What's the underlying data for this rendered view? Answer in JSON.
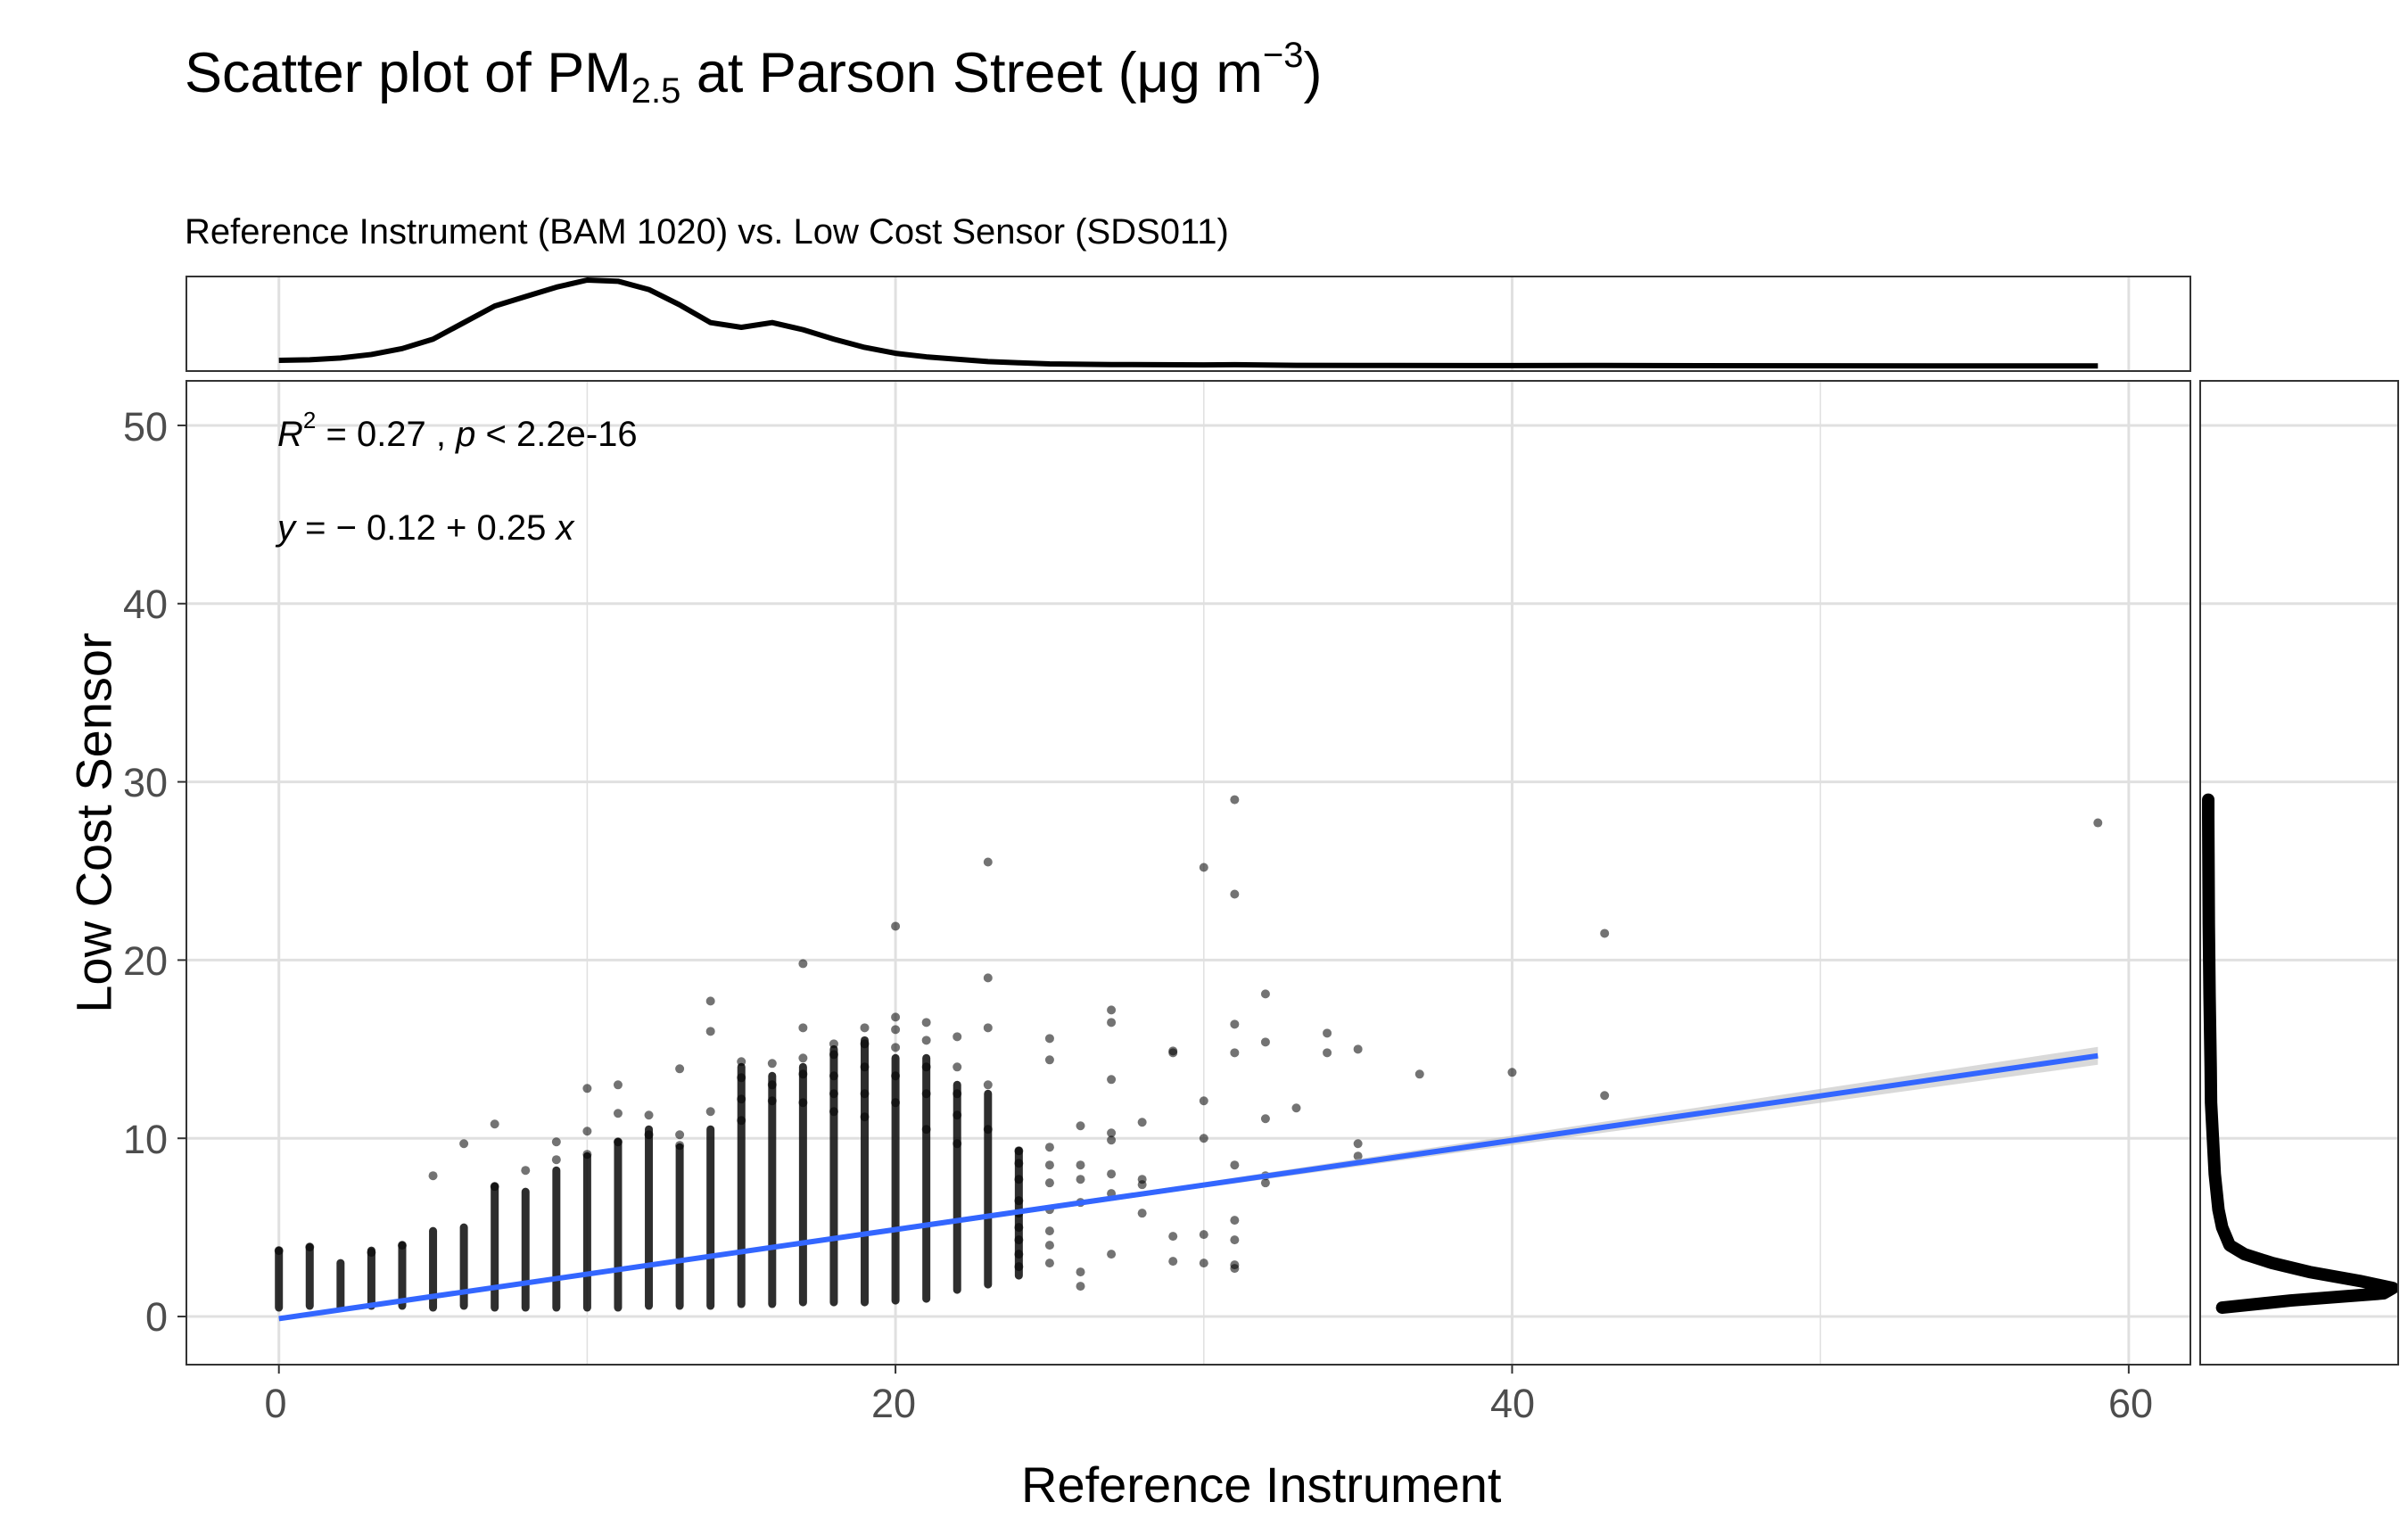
{
  "chart_data": {
    "type": "scatter",
    "title_prefix": "Scatter plot of PM",
    "title_sub": "2.5",
    "title_mid": " at Parson Street (μg m",
    "title_sup": "−3",
    "title_end": ")",
    "subtitle": "Reference Instrument (BAM 1020) vs. Low Cost Sensor (SDS011)",
    "xlabel": "Reference Instrument",
    "ylabel": "Low Cost Sensor",
    "xlim": [
      -3.0,
      62.0
    ],
    "ylim": [
      -2.7,
      52.5
    ],
    "x_ticks": [
      "0",
      "20",
      "40",
      "60"
    ],
    "y_ticks": [
      "0",
      "10",
      "20",
      "30",
      "40",
      "50"
    ],
    "grid": true,
    "annotation_r2": {
      "r": "R",
      "sup": "2",
      "mid": " = 0.27 , ",
      "p": "p",
      "end": " < 2.2e-16"
    },
    "annotation_eq": {
      "y": "y",
      "mid": " = − 0.12 + 0.25 ",
      "x": "x"
    },
    "regression": {
      "intercept": -0.12,
      "slope": 0.25,
      "x_range": [
        0,
        59
      ],
      "color": "#3366FF"
    },
    "columns": [
      {
        "x": 0,
        "ymin": 0.5,
        "ymax": 3.7
      },
      {
        "x": 1,
        "ymin": 0.6,
        "ymax": 3.9
      },
      {
        "x": 2,
        "ymin": 0.5,
        "ymax": 3.0
      },
      {
        "x": 3,
        "ymin": 0.6,
        "ymax": 3.7
      },
      {
        "x": 4,
        "ymin": 0.6,
        "ymax": 4.0
      },
      {
        "x": 5,
        "ymin": 0.5,
        "ymax": 4.8
      },
      {
        "x": 6,
        "ymin": 0.6,
        "ymax": 5.0
      },
      {
        "x": 7,
        "ymin": 0.5,
        "ymax": 7.3
      },
      {
        "x": 8,
        "ymin": 0.5,
        "ymax": 7.0
      },
      {
        "x": 9,
        "ymin": 0.5,
        "ymax": 8.2
      },
      {
        "x": 10,
        "ymin": 0.5,
        "ymax": 9.0
      },
      {
        "x": 11,
        "ymin": 0.5,
        "ymax": 9.8
      },
      {
        "x": 12,
        "ymin": 0.6,
        "ymax": 10.5
      },
      {
        "x": 13,
        "ymin": 0.6,
        "ymax": 9.5
      },
      {
        "x": 14,
        "ymin": 0.6,
        "ymax": 10.5
      },
      {
        "x": 15,
        "ymin": 0.7,
        "ymax": 14.0
      },
      {
        "x": 16,
        "ymin": 0.7,
        "ymax": 13.5
      },
      {
        "x": 17,
        "ymin": 0.8,
        "ymax": 14.0
      },
      {
        "x": 18,
        "ymin": 0.8,
        "ymax": 15.0
      },
      {
        "x": 19,
        "ymin": 0.8,
        "ymax": 15.5
      },
      {
        "x": 20,
        "ymin": 0.9,
        "ymax": 14.5
      },
      {
        "x": 21,
        "ymin": 1.0,
        "ymax": 14.5
      },
      {
        "x": 22,
        "ymin": 1.5,
        "ymax": 13.0
      },
      {
        "x": 23,
        "ymin": 1.8,
        "ymax": 12.5
      },
      {
        "x": 24,
        "ymin": 2.3,
        "ymax": 9.3
      }
    ],
    "points": [
      [
        0,
        3.7
      ],
      [
        1,
        3.9
      ],
      [
        3,
        3.6
      ],
      [
        4,
        4.0
      ],
      [
        5,
        7.9
      ],
      [
        6,
        9.7
      ],
      [
        7,
        10.8
      ],
      [
        7,
        7.3
      ],
      [
        8,
        8.2
      ],
      [
        9,
        9.8
      ],
      [
        9,
        8.8
      ],
      [
        10,
        12.8
      ],
      [
        10,
        10.4
      ],
      [
        10,
        9.1
      ],
      [
        11,
        13.0
      ],
      [
        11,
        11.4
      ],
      [
        11,
        9.8
      ],
      [
        12,
        11.3
      ],
      [
        12,
        10.2
      ],
      [
        13,
        13.9
      ],
      [
        13,
        10.2
      ],
      [
        13,
        9.6
      ],
      [
        14,
        17.7
      ],
      [
        14,
        16.0
      ],
      [
        14,
        11.5
      ],
      [
        15,
        14.3
      ],
      [
        15,
        13.4
      ],
      [
        15,
        12.2
      ],
      [
        15,
        11.0
      ],
      [
        16,
        14.2
      ],
      [
        16,
        13.0
      ],
      [
        16,
        12.1
      ],
      [
        17,
        19.8
      ],
      [
        17,
        16.2
      ],
      [
        17,
        14.5
      ],
      [
        17,
        13.6
      ],
      [
        17,
        12.0
      ],
      [
        18,
        15.3
      ],
      [
        18,
        14.7
      ],
      [
        18,
        13.5
      ],
      [
        18,
        12.5
      ],
      [
        18,
        11.5
      ],
      [
        19,
        16.2
      ],
      [
        19,
        15.3
      ],
      [
        19,
        14.0
      ],
      [
        19,
        12.5
      ],
      [
        19,
        11.2
      ],
      [
        20,
        21.9
      ],
      [
        20,
        16.8
      ],
      [
        20,
        16.1
      ],
      [
        20,
        15.1
      ],
      [
        20,
        13.5
      ],
      [
        20,
        12.0
      ],
      [
        21,
        16.5
      ],
      [
        21,
        15.5
      ],
      [
        21,
        14.0
      ],
      [
        21,
        12.5
      ],
      [
        21,
        10.5
      ],
      [
        22,
        15.7
      ],
      [
        22,
        14.0
      ],
      [
        22,
        12.5
      ],
      [
        22,
        11.3
      ],
      [
        22,
        9.7
      ],
      [
        23,
        25.5
      ],
      [
        23,
        19.0
      ],
      [
        23,
        16.2
      ],
      [
        23,
        13.0
      ],
      [
        23,
        10.5
      ],
      [
        24,
        9.3
      ],
      [
        24,
        8.6
      ],
      [
        24,
        7.7
      ],
      [
        24,
        6.5
      ],
      [
        24,
        5.8
      ],
      [
        24,
        5.0
      ],
      [
        24,
        4.3
      ],
      [
        24,
        3.5
      ],
      [
        24,
        2.8
      ],
      [
        25,
        15.6
      ],
      [
        25,
        14.4
      ],
      [
        25,
        9.5
      ],
      [
        25,
        8.5
      ],
      [
        25,
        7.5
      ],
      [
        25,
        6.0
      ],
      [
        25,
        4.8
      ],
      [
        25,
        4.0
      ],
      [
        25,
        3.0
      ],
      [
        26,
        10.7
      ],
      [
        26,
        8.5
      ],
      [
        26,
        7.7
      ],
      [
        26,
        6.4
      ],
      [
        26,
        2.5
      ],
      [
        26,
        1.7
      ],
      [
        27,
        17.2
      ],
      [
        27,
        16.5
      ],
      [
        27,
        13.3
      ],
      [
        27,
        10.3
      ],
      [
        27,
        9.9
      ],
      [
        27,
        8.0
      ],
      [
        27,
        6.9
      ],
      [
        27,
        3.5
      ],
      [
        28,
        10.9
      ],
      [
        28,
        7.7
      ],
      [
        28,
        7.4
      ],
      [
        28,
        5.8
      ],
      [
        29,
        14.8
      ],
      [
        29,
        14.9
      ],
      [
        29,
        4.5
      ],
      [
        29,
        3.1
      ],
      [
        30,
        25.2
      ],
      [
        30,
        12.1
      ],
      [
        30,
        10.0
      ],
      [
        30,
        4.6
      ],
      [
        30,
        3.0
      ],
      [
        31,
        29.0
      ],
      [
        31,
        23.7
      ],
      [
        31,
        16.4
      ],
      [
        31,
        14.8
      ],
      [
        31,
        8.5
      ],
      [
        31,
        5.4
      ],
      [
        31,
        4.3
      ],
      [
        31,
        2.9
      ],
      [
        31,
        2.7
      ],
      [
        32,
        18.1
      ],
      [
        32,
        15.4
      ],
      [
        32,
        11.1
      ],
      [
        32,
        7.9
      ],
      [
        32,
        7.5
      ],
      [
        33,
        11.7
      ],
      [
        34,
        15.9
      ],
      [
        34,
        14.8
      ],
      [
        35,
        15.0
      ],
      [
        35,
        9.7
      ],
      [
        35,
        9.0
      ],
      [
        37,
        13.6
      ],
      [
        40,
        13.7
      ],
      [
        43,
        21.5
      ],
      [
        43,
        12.4
      ],
      [
        59,
        27.7
      ]
    ],
    "marginal_x_density": [
      [
        0,
        0.06
      ],
      [
        1,
        0.065
      ],
      [
        2,
        0.08
      ],
      [
        3,
        0.11
      ],
      [
        4,
        0.16
      ],
      [
        5,
        0.24
      ],
      [
        6,
        0.38
      ],
      [
        7,
        0.52
      ],
      [
        8,
        0.6
      ],
      [
        9,
        0.68
      ],
      [
        10,
        0.74
      ],
      [
        11,
        0.73
      ],
      [
        12,
        0.66
      ],
      [
        13,
        0.53
      ],
      [
        14,
        0.38
      ],
      [
        15,
        0.34
      ],
      [
        16,
        0.38
      ],
      [
        17,
        0.32
      ],
      [
        18,
        0.24
      ],
      [
        19,
        0.17
      ],
      [
        20,
        0.12
      ],
      [
        21,
        0.09
      ],
      [
        22,
        0.07
      ],
      [
        23,
        0.05
      ],
      [
        24,
        0.04
      ],
      [
        25,
        0.03
      ],
      [
        27,
        0.025
      ],
      [
        30,
        0.022
      ],
      [
        31,
        0.024
      ],
      [
        33,
        0.018
      ],
      [
        36,
        0.017
      ],
      [
        40,
        0.016
      ],
      [
        43,
        0.017
      ],
      [
        46,
        0.015
      ],
      [
        50,
        0.014
      ],
      [
        55,
        0.013
      ],
      [
        59,
        0.013
      ]
    ],
    "marginal_y_density": [
      [
        0.5,
        0.08
      ],
      [
        0.9,
        0.45
      ],
      [
        1.3,
        0.95
      ],
      [
        1.6,
        1.0
      ],
      [
        2.0,
        0.82
      ],
      [
        2.5,
        0.55
      ],
      [
        3.0,
        0.35
      ],
      [
        3.5,
        0.2
      ],
      [
        4.0,
        0.12
      ],
      [
        5.0,
        0.08
      ],
      [
        6.0,
        0.06
      ],
      [
        7.0,
        0.05
      ],
      [
        8.0,
        0.04
      ],
      [
        9.0,
        0.035
      ],
      [
        10.0,
        0.03
      ],
      [
        12.0,
        0.02
      ],
      [
        14.0,
        0.018
      ],
      [
        16.0,
        0.015
      ],
      [
        18.0,
        0.012
      ],
      [
        20.0,
        0.01
      ],
      [
        22.0,
        0.008
      ],
      [
        24.0,
        0.007
      ],
      [
        26.0,
        0.006
      ],
      [
        28.0,
        0.005
      ],
      [
        29.0,
        0.005
      ]
    ],
    "colors": {
      "points": "#000000",
      "line": "#3366FF",
      "ribbon": "#bfbfbf",
      "grid": "#e0e0e0",
      "frame": "#333333"
    }
  }
}
